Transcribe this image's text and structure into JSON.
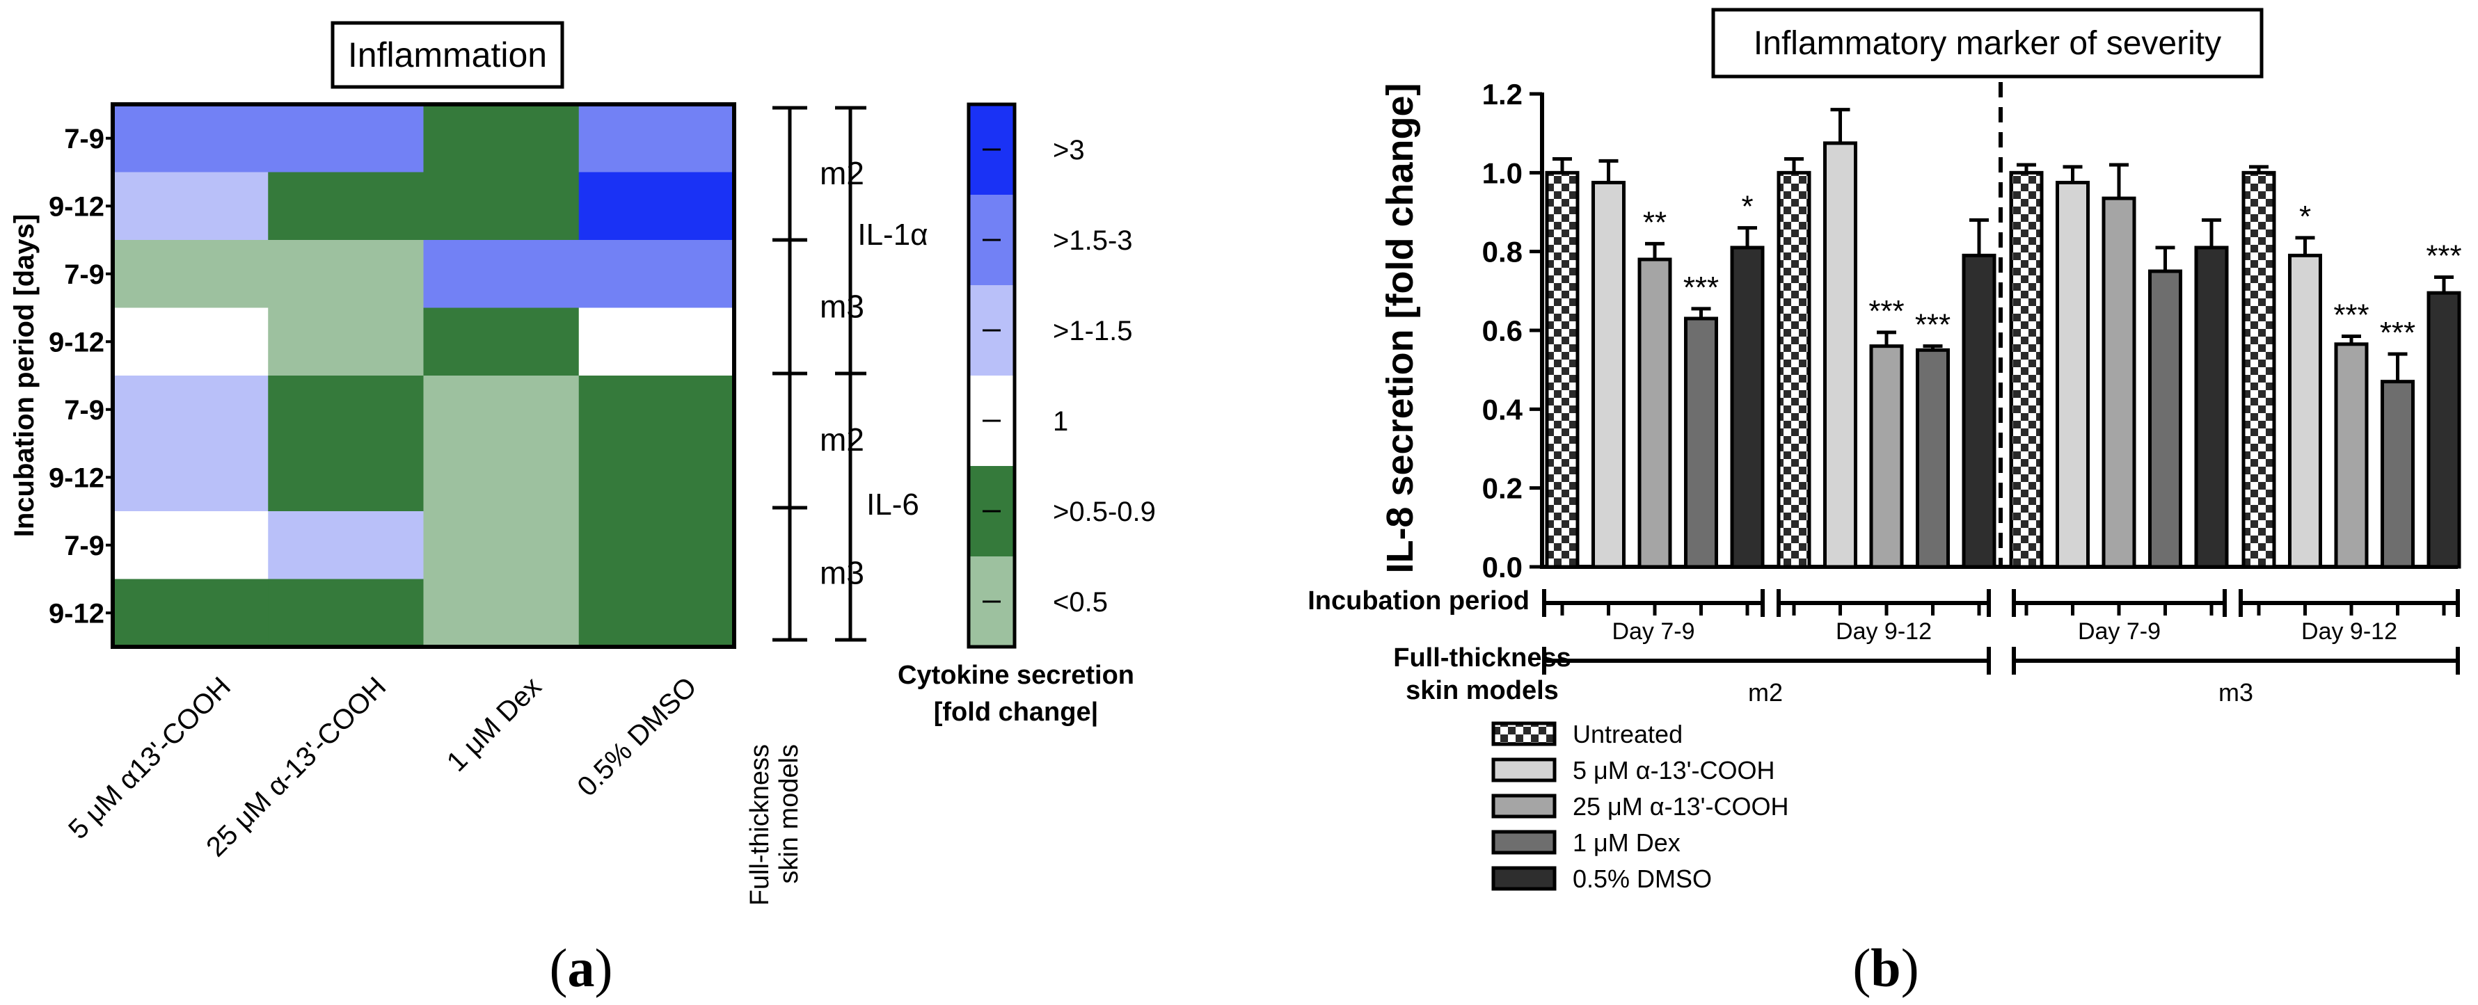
{
  "panel_a": {
    "label_open": "(",
    "label_letter": "a",
    "label_close": ")",
    "title": "Inflammation",
    "y_axis_label": "Incubation period [days]",
    "row_labels": [
      "7-9",
      "9-12",
      "7-9",
      "9-12",
      "7-9",
      "9-12",
      "7-9",
      "9-12"
    ],
    "column_labels": [
      "5 μM α13'-COOH",
      "25 μM α-13'-COOH",
      "1 μM Dex",
      "0.5% DMSO"
    ],
    "models_label_line1": "Full-thickness",
    "models_label_line2": "skin models",
    "model_groups": [
      "m2",
      "m3",
      "m2",
      "m3"
    ],
    "cytokine_groups": [
      "IL-1α",
      "IL-6"
    ],
    "legend_title_line1": "Cytokine secretion",
    "legend_title_line2": "[fold change|",
    "legend_items": [
      {
        "label": ">3",
        "color": "#1a32f5"
      },
      {
        "label": ">1.5-3",
        "color": "#7281f5"
      },
      {
        "label": ">1-1.5",
        "color": "#b9c0f9"
      },
      {
        "label": "1",
        "color": "#ffffff"
      },
      {
        "label": ">0.5-0.9",
        "color": "#357a3b"
      },
      {
        "label": "<0.5",
        "color": "#9dc19f"
      }
    ]
  },
  "panel_b": {
    "label_open": "(",
    "label_letter": "b",
    "label_close": ")",
    "title": "Inflammatory marker of severity",
    "incubation_label": "Incubation period",
    "models_label_line1": "Full-thickness",
    "models_label_line2": "skin models",
    "period_labels": [
      "Day 7-9",
      "Day 9-12",
      "Day 7-9",
      "Day 9-12"
    ],
    "model_labels": [
      "m2",
      "m3"
    ],
    "legend": [
      {
        "label": "Untreated",
        "fill": "checker"
      },
      {
        "label": "5 μM α-13'-COOH",
        "fill": "#d4d4d4"
      },
      {
        "label": "25 μM α-13'-COOH",
        "fill": "#a5a5a5"
      },
      {
        "label": "1 μM Dex",
        "fill": "#6e6e6e"
      },
      {
        "label": "0.5% DMSO",
        "fill": "#2e2e2e"
      }
    ]
  },
  "chart_data": [
    {
      "type": "heatmap",
      "title": "Inflammation",
      "ylabel": "Incubation period [days]",
      "columns": [
        "5 μM α13'-COOH",
        "25 μM α-13'-COOH",
        "1 μM Dex",
        "0.5% DMSO"
      ],
      "rows": [
        {
          "cytokine": "IL-1α",
          "model": "m2",
          "period": "7-9",
          "cells": [
            ">1.5-3",
            ">1.5-3",
            ">0.5-0.9",
            ">1.5-3"
          ]
        },
        {
          "cytokine": "IL-1α",
          "model": "m2",
          "period": "9-12",
          "cells": [
            ">1-1.5",
            ">0.5-0.9",
            ">0.5-0.9",
            ">3"
          ]
        },
        {
          "cytokine": "IL-1α",
          "model": "m3",
          "period": "7-9",
          "cells": [
            "<0.5",
            "<0.5",
            ">1.5-3",
            ">1.5-3"
          ]
        },
        {
          "cytokine": "IL-1α",
          "model": "m3",
          "period": "9-12",
          "cells": [
            "1",
            "<0.5",
            ">0.5-0.9",
            "1"
          ]
        },
        {
          "cytokine": "IL-6",
          "model": "m2",
          "period": "7-9",
          "cells": [
            ">1-1.5",
            ">0.5-0.9",
            "<0.5",
            ">0.5-0.9"
          ]
        },
        {
          "cytokine": "IL-6",
          "model": "m2",
          "period": "9-12",
          "cells": [
            ">1-1.5",
            ">0.5-0.9",
            "<0.5",
            ">0.5-0.9"
          ]
        },
        {
          "cytokine": "IL-6",
          "model": "m3",
          "period": "7-9",
          "cells": [
            "1",
            ">1-1.5",
            "<0.5",
            ">0.5-0.9"
          ]
        },
        {
          "cytokine": "IL-6",
          "model": "m3",
          "period": "9-12",
          "cells": [
            ">0.5-0.9",
            ">0.5-0.9",
            "<0.5",
            ">0.5-0.9"
          ]
        }
      ],
      "legend_title": "Cytokine secretion [fold change|"
    },
    {
      "type": "bar",
      "title": "Inflammatory marker of severity",
      "ylabel": "IL-8 secretion [fold change]",
      "ylim": [
        0,
        1.2
      ],
      "yticks": [
        "0.0",
        "0.2",
        "0.4",
        "0.6",
        "0.8",
        "1.0",
        "1.2"
      ],
      "groups": [
        {
          "model": "m2",
          "period": "Day 7-9",
          "values": [
            1.0,
            0.975,
            0.78,
            0.63,
            0.81
          ],
          "errors": [
            0.035,
            0.055,
            0.04,
            0.025,
            0.05
          ],
          "sig": [
            "",
            "",
            "**",
            "***",
            "*"
          ]
        },
        {
          "model": "m2",
          "period": "Day 9-12",
          "values": [
            1.0,
            1.075,
            0.56,
            0.55,
            0.79
          ],
          "errors": [
            0.035,
            0.085,
            0.035,
            0.01,
            0.09
          ],
          "sig": [
            "",
            "",
            "***",
            "***",
            ""
          ]
        },
        {
          "model": "m3",
          "period": "Day 7-9",
          "values": [
            1.0,
            0.975,
            0.935,
            0.75,
            0.81
          ],
          "errors": [
            0.02,
            0.04,
            0.085,
            0.06,
            0.07
          ],
          "sig": [
            "",
            "",
            "",
            "",
            ""
          ]
        },
        {
          "model": "m3",
          "period": "Day 9-12",
          "values": [
            1.0,
            0.79,
            0.565,
            0.47,
            0.695
          ],
          "errors": [
            0.015,
            0.045,
            0.02,
            0.07,
            0.04
          ],
          "sig": [
            "",
            "*",
            "***",
            "***",
            "***"
          ]
        }
      ],
      "series": [
        "Untreated",
        "5 μM α-13'-COOH",
        "25 μM α-13'-COOH",
        "1 μM Dex",
        "0.5% DMSO"
      ]
    }
  ]
}
